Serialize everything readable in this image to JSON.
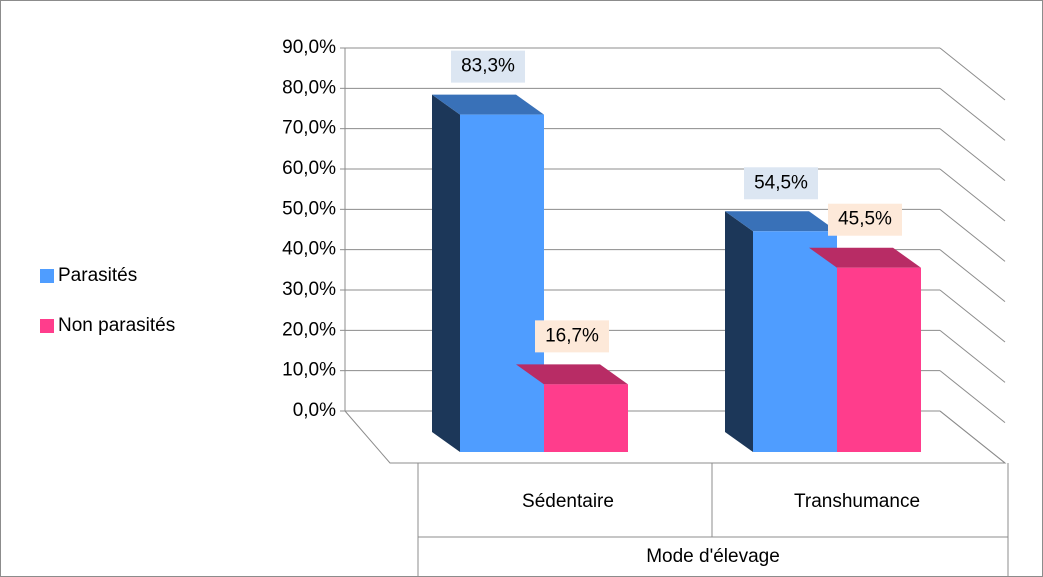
{
  "chart_data": {
    "type": "bar3d",
    "categories": [
      "Sédentaire",
      "Transhumance"
    ],
    "x_label": "Mode d'élevage",
    "series": [
      {
        "name": "Parasités",
        "color": "#4f9dff",
        "values": [
          83.3,
          54.5
        ],
        "value_labels": [
          "83,3%",
          "54,5%"
        ]
      },
      {
        "name": "Non parasités",
        "color": "#ff3d8c",
        "values": [
          16.7,
          45.5
        ],
        "value_labels": [
          "16,7%",
          "45,5%"
        ]
      }
    ],
    "ylim": [
      0,
      90
    ],
    "yticks": [
      {
        "value": 0,
        "label": "0,0%"
      },
      {
        "value": 10,
        "label": "10,0%"
      },
      {
        "value": 20,
        "label": "20,0%"
      },
      {
        "value": 30,
        "label": "30,0%"
      },
      {
        "value": 40,
        "label": "40,0%"
      },
      {
        "value": 50,
        "label": "50,0%"
      },
      {
        "value": 60,
        "label": "60,0%"
      },
      {
        "value": 70,
        "label": "70,0%"
      },
      {
        "value": 80,
        "label": "80,0%"
      },
      {
        "value": 90,
        "label": "90,0%"
      }
    ],
    "grid": true,
    "legend": "left"
  }
}
